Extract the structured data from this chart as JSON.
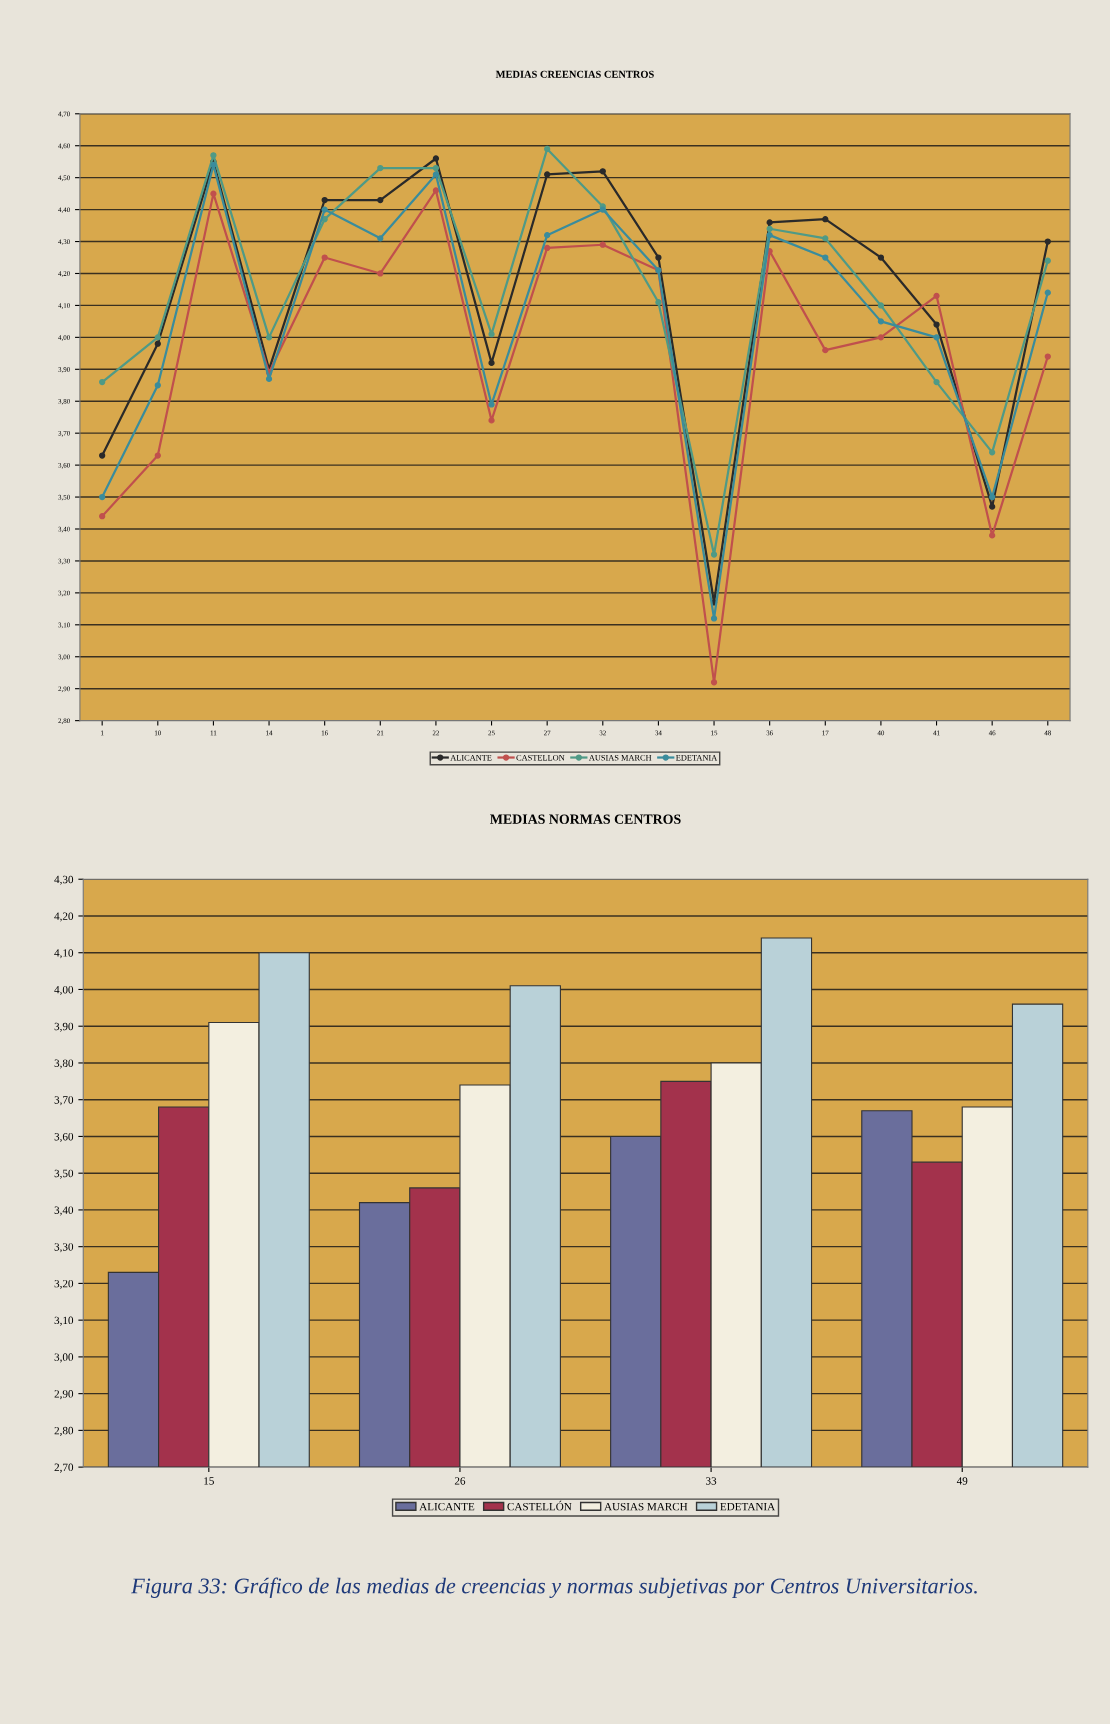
{
  "chart_data": [
    {
      "type": "line",
      "title": "MEDIAS CREENCIAS CENTROS",
      "categories": [
        "1",
        "10",
        "11",
        "14",
        "16",
        "21",
        "22",
        "25",
        "27",
        "32",
        "34",
        "15",
        "36",
        "17",
        "40",
        "41",
        "46",
        "48"
      ],
      "series": [
        {
          "name": "ALICANTE",
          "color": "#2a2a2a",
          "values": [
            3.63,
            3.98,
            4.55,
            3.9,
            4.43,
            4.43,
            4.56,
            3.92,
            4.51,
            4.52,
            4.25,
            3.17,
            4.36,
            4.37,
            4.25,
            4.04,
            3.47,
            4.3
          ]
        },
        {
          "name": "CASTELLON",
          "color": "#c0504d",
          "values": [
            3.44,
            3.63,
            4.45,
            3.89,
            4.25,
            4.2,
            4.46,
            3.74,
            4.28,
            4.29,
            4.21,
            2.92,
            4.27,
            3.96,
            4.0,
            4.13,
            3.38,
            3.94
          ]
        },
        {
          "name": "AUSIAS MARCH",
          "color": "#4f9a86",
          "values": [
            3.86,
            4.0,
            4.57,
            4.0,
            4.37,
            4.53,
            4.53,
            4.01,
            4.59,
            4.41,
            4.11,
            3.32,
            4.34,
            4.31,
            4.1,
            3.86,
            3.64,
            4.24
          ]
        },
        {
          "name": "EDETANIA",
          "color": "#3a8c9c",
          "values": [
            3.5,
            3.85,
            4.54,
            3.87,
            4.4,
            4.31,
            4.51,
            3.79,
            4.32,
            4.4,
            4.21,
            3.12,
            4.32,
            4.25,
            4.05,
            4.0,
            3.5,
            4.14
          ]
        }
      ],
      "ylim": [
        2.8,
        4.7
      ],
      "yticks": [
        {
          "value": 2.8,
          "label": "2,80"
        },
        {
          "value": 2.9,
          "label": "2,90"
        },
        {
          "value": 3.0,
          "label": "3,00"
        },
        {
          "value": 3.1,
          "label": "3,10"
        },
        {
          "value": 3.2,
          "label": "3,20"
        },
        {
          "value": 3.3,
          "label": "3,30"
        },
        {
          "value": 3.4,
          "label": "3,40"
        },
        {
          "value": 3.5,
          "label": "3,50"
        },
        {
          "value": 3.6,
          "label": "3,60"
        },
        {
          "value": 3.7,
          "label": "3,70"
        },
        {
          "value": 3.8,
          "label": "3,80"
        },
        {
          "value": 3.9,
          "label": "3,90"
        },
        {
          "value": 4.0,
          "label": "4,00"
        },
        {
          "value": 4.1,
          "label": "4,10"
        },
        {
          "value": 4.2,
          "label": "4,20"
        },
        {
          "value": 4.3,
          "label": "4,30"
        },
        {
          "value": 4.4,
          "label": "4,40"
        },
        {
          "value": 4.5,
          "label": "4,50"
        },
        {
          "value": 4.6,
          "label": "4,60"
        },
        {
          "value": 4.7,
          "label": "4,70"
        }
      ],
      "grid": "y",
      "legend": "bottom",
      "marker": "circle",
      "line_style": "solid"
    },
    {
      "type": "bar",
      "title": "MEDIAS NORMAS CENTROS",
      "categories": [
        "15",
        "26",
        "33",
        "49"
      ],
      "series": [
        {
          "name": "ALICANTE",
          "color": "#6a6e9c",
          "values": [
            3.23,
            3.42,
            3.6,
            3.67
          ]
        },
        {
          "name": "CASTELLÓN",
          "color": "#a3324c",
          "values": [
            3.68,
            3.46,
            3.75,
            3.53
          ]
        },
        {
          "name": "AUSIAS MARCH",
          "color": "#f3efe0",
          "values": [
            3.91,
            3.74,
            3.8,
            3.68
          ]
        },
        {
          "name": "EDETANIA",
          "color": "#b9d1d8",
          "values": [
            4.1,
            4.01,
            4.14,
            3.96
          ]
        }
      ],
      "ylim": [
        2.7,
        4.3
      ],
      "yticks": [
        {
          "value": 2.7,
          "label": "2,70"
        },
        {
          "value": 2.8,
          "label": "2,80"
        },
        {
          "value": 2.9,
          "label": "2,90"
        },
        {
          "value": 3.0,
          "label": "3,00"
        },
        {
          "value": 3.1,
          "label": "3,10"
        },
        {
          "value": 3.2,
          "label": "3,20"
        },
        {
          "value": 3.3,
          "label": "3,30"
        },
        {
          "value": 3.4,
          "label": "3,40"
        },
        {
          "value": 3.5,
          "label": "3,50"
        },
        {
          "value": 3.6,
          "label": "3,60"
        },
        {
          "value": 3.7,
          "label": "3,70"
        },
        {
          "value": 3.8,
          "label": "3,80"
        },
        {
          "value": 3.9,
          "label": "3,90"
        },
        {
          "value": 4.0,
          "label": "4,00"
        },
        {
          "value": 4.1,
          "label": "4,10"
        },
        {
          "value": 4.2,
          "label": "4,20"
        },
        {
          "value": 4.3,
          "label": "4,30"
        }
      ],
      "grid": "y",
      "legend": "bottom",
      "annotations": [
        "Figura 33: Gráfico de las medias de creencias y normas subjetivas por Centros Universitarios."
      ]
    }
  ]
}
